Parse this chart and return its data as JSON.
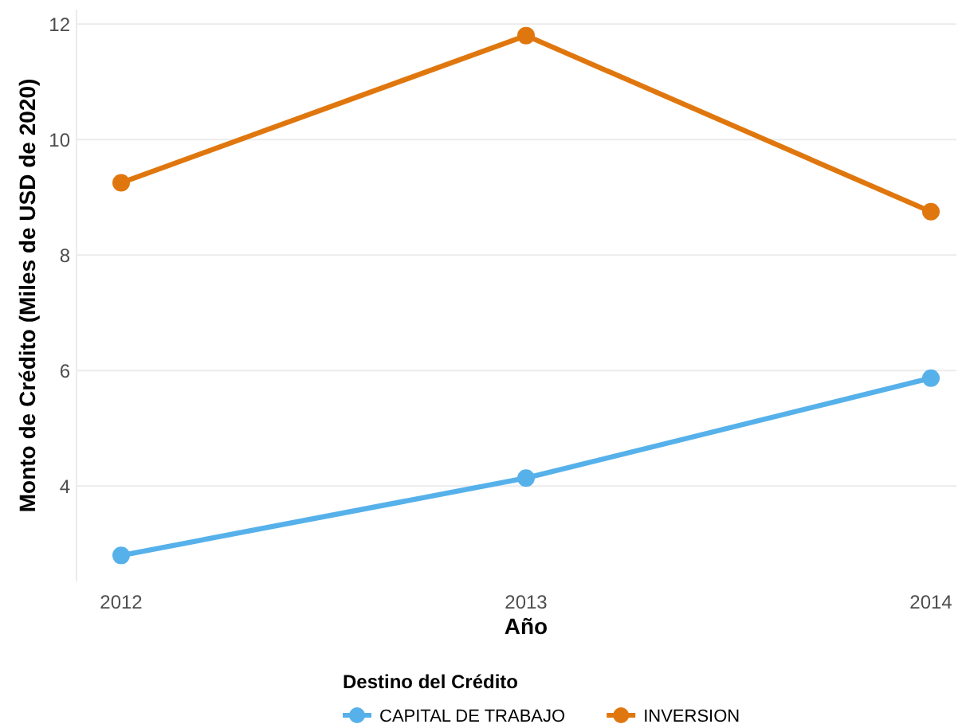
{
  "chart_data": {
    "type": "line",
    "xlabel": "Año",
    "ylabel": "Monto de Crédito (Miles de USD de 2020)",
    "legend_title": "Destino del Crédito",
    "x": [
      2012,
      2013,
      2014
    ],
    "xlim": [
      2012,
      2014
    ],
    "xticks": [
      2012,
      2013,
      2014
    ],
    "ylim": [
      2.35,
      12.25
    ],
    "yticks": [
      4,
      6,
      8,
      10,
      12
    ],
    "series": [
      {
        "name": "CAPITAL DE TRABAJO",
        "color": "#56b1ea",
        "values": [
          2.8,
          4.14,
          5.87
        ]
      },
      {
        "name": "INVERSION",
        "color": "#e0770e",
        "values": [
          9.25,
          11.8,
          8.75
        ]
      }
    ],
    "grid": "y",
    "legend": "bottom",
    "marker": "circle",
    "line_style": "solid"
  }
}
